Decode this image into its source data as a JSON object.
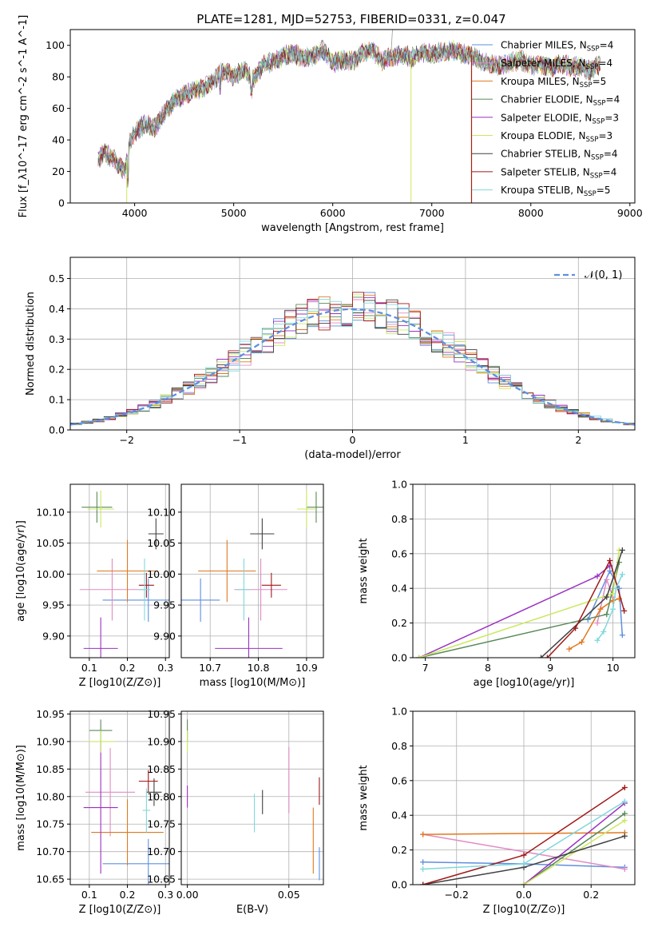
{
  "title": "PLATE=1281, MJD=52753, FIBERID=0331, z=0.047",
  "colors": {
    "chabrier_miles": "#5f8fe0",
    "salpeter_miles": "#e08cc4",
    "kroupa_miles": "#e07820",
    "chabrier_elodie": "#5a8a5a",
    "salpeter_elodie": "#9b30c0",
    "kroupa_elodie": "#cbe860",
    "chabrier_stelib": "#404040",
    "salpeter_stelib": "#a01818",
    "kroupa_stelib": "#80d8dc",
    "normal_curve": "#5f8fe0"
  },
  "chart_data": [
    {
      "type": "line",
      "title": "PLATE=1281, MJD=52753, FIBERID=0331, z=0.047",
      "xlabel": "wavelength [Angstrom, rest frame]",
      "ylabel": "Flux [f_λ10^-17 erg cm^-2 s^-1 A^-1]",
      "xlim": [
        3350,
        9050
      ],
      "ylim": [
        0,
        110
      ],
      "xticks": [
        "4000",
        "5000",
        "6000",
        "7000",
        "8000",
        "9000"
      ],
      "yticks": [
        "0",
        "20",
        "40",
        "60",
        "80",
        "100"
      ],
      "legend": "right",
      "legend_entries": [
        {
          "label": "Chabrier MILES, N_SSP=4",
          "color": "#5f8fe0"
        },
        {
          "label": "Salpeter MILES, N_SSP=4",
          "color": "#e08cc4"
        },
        {
          "label": "Kroupa MILES, N_SSP=5",
          "color": "#e07820"
        },
        {
          "label": "Chabrier ELODIE, N_SSP=4",
          "color": "#5a8a5a"
        },
        {
          "label": "Salpeter ELODIE, N_SSP=3",
          "color": "#9b30c0"
        },
        {
          "label": "Kroupa ELODIE, N_SSP=3",
          "color": "#cbe860"
        },
        {
          "label": "Chabrier STELIB, N_SSP=4",
          "color": "#404040"
        },
        {
          "label": "Salpeter STELIB, N_SSP=4",
          "color": "#a01818"
        },
        {
          "label": "Kroupa STELIB, N_SSP=5",
          "color": "#80d8dc"
        }
      ],
      "spectrum_envelope": {
        "x": [
          3630,
          3700,
          3800,
          3900,
          3950,
          4000,
          4100,
          4200,
          4300,
          4400,
          4500,
          4600,
          4700,
          4800,
          4900,
          5000,
          5100,
          5200,
          5300,
          5400,
          5500,
          5600,
          5700,
          5800,
          5900,
          6000,
          6100,
          6200,
          6300,
          6400,
          6500,
          6600,
          6700,
          6800,
          6900,
          7000,
          7100,
          7200,
          7300,
          7400,
          7500,
          7600,
          7700,
          7800,
          7900,
          8000,
          8100,
          8200,
          8300,
          8400,
          8500,
          8600,
          8700
        ],
        "y": [
          28,
          32,
          27,
          20,
          38,
          45,
          50,
          48,
          57,
          65,
          68,
          72,
          73,
          78,
          84,
          80,
          85,
          78,
          88,
          90,
          93,
          95,
          92,
          93,
          97,
          89,
          91,
          90,
          95,
          97,
          90,
          93,
          94,
          92,
          96,
          94,
          96,
          97,
          95,
          94,
          90,
          88,
          87,
          89,
          91,
          87,
          88,
          86,
          88,
          87,
          86,
          84,
          88
        ]
      }
    },
    {
      "type": "line",
      "xlabel": "(data-model)/error",
      "ylabel": "Normed distribution",
      "xlim": [
        -2.5,
        2.5
      ],
      "ylim": [
        0,
        0.57
      ],
      "xticks": [
        "−2",
        "−1",
        "0",
        "1",
        "2"
      ],
      "yticks": [
        "0.0",
        "0.1",
        "0.2",
        "0.3",
        "0.4",
        "0.5"
      ],
      "legend": "top-right",
      "legend_label": "𝒩(0, 1)",
      "series": [
        {
          "name": "N(0,1)",
          "type": "dashed",
          "mean": 0,
          "sigma": 1
        }
      ],
      "histogram_bin_width": 0.1
    },
    {
      "type": "scatter",
      "xlabel": "Z [log10(Z/Z⊙)]",
      "ylabel": "age [log10(age/yr)]",
      "xlim": [
        0.05,
        0.31
      ],
      "ylim": [
        9.865,
        10.145
      ],
      "xticks": [
        "0.1",
        "0.2",
        "0.3"
      ],
      "yticks": [
        "9.90",
        "9.95",
        "10.00",
        "10.05",
        "10.10"
      ],
      "points": [
        {
          "color": "#5f8fe0",
          "x": 0.255,
          "y": 9.958,
          "xerr": 0.12,
          "yerr": 0.035
        },
        {
          "color": "#e08cc4",
          "x": 0.16,
          "y": 9.975,
          "xerr": 0.085,
          "yerr": 0.05
        },
        {
          "color": "#e07820",
          "x": 0.2,
          "y": 10.005,
          "xerr": 0.08,
          "yerr": 0.05
        },
        {
          "color": "#5a8a5a",
          "x": 0.12,
          "y": 10.108,
          "xerr": 0.04,
          "yerr": 0.025
        },
        {
          "color": "#9b30c0",
          "x": 0.13,
          "y": 9.88,
          "xerr": 0.045,
          "yerr": 0.05
        },
        {
          "color": "#cbe860",
          "x": 0.13,
          "y": 10.105,
          "xerr": 0.035,
          "yerr": 0.03
        },
        {
          "color": "#404040",
          "x": 0.275,
          "y": 10.065,
          "xerr": 0.02,
          "yerr": 0.025
        },
        {
          "color": "#a01818",
          "x": 0.25,
          "y": 9.982,
          "xerr": 0.02,
          "yerr": 0.02
        },
        {
          "color": "#80d8dc",
          "x": 0.245,
          "y": 9.975,
          "xerr": 0.015,
          "yerr": 0.05
        }
      ]
    },
    {
      "type": "scatter",
      "xlabel": "mass [log10(M/M⊙)]",
      "xlim": [
        10.64,
        10.935
      ],
      "ylim": [
        9.865,
        10.145
      ],
      "xticks": [
        "10.7",
        "10.8",
        "10.9"
      ],
      "yticks": [
        "9.90",
        "9.95",
        "10.00",
        "10.05",
        "10.10"
      ],
      "points": [
        {
          "color": "#5f8fe0",
          "x": 10.68,
          "y": 9.958,
          "xerr": 0.04,
          "yerr": 0.035
        },
        {
          "color": "#e08cc4",
          "x": 10.805,
          "y": 9.975,
          "xerr": 0.055,
          "yerr": 0.05
        },
        {
          "color": "#e07820",
          "x": 10.735,
          "y": 10.005,
          "xerr": 0.06,
          "yerr": 0.05
        },
        {
          "color": "#5a8a5a",
          "x": 10.92,
          "y": 10.108,
          "xerr": 0.02,
          "yerr": 0.025
        },
        {
          "color": "#9b30c0",
          "x": 10.78,
          "y": 9.88,
          "xerr": 0.07,
          "yerr": 0.05
        },
        {
          "color": "#cbe860",
          "x": 10.9,
          "y": 10.105,
          "xerr": 0.02,
          "yerr": 0.03
        },
        {
          "color": "#404040",
          "x": 10.808,
          "y": 10.065,
          "xerr": 0.025,
          "yerr": 0.025
        },
        {
          "color": "#a01818",
          "x": 10.827,
          "y": 9.982,
          "xerr": 0.02,
          "yerr": 0.02
        },
        {
          "color": "#80d8dc",
          "x": 10.77,
          "y": 9.975,
          "xerr": 0.015,
          "yerr": 0.05
        }
      ]
    },
    {
      "type": "line",
      "xlabel": "age [log10(age/yr)]",
      "ylabel": "mass weight",
      "xlim": [
        6.8,
        10.35
      ],
      "ylim": [
        0,
        1
      ],
      "xticks": [
        "7",
        "8",
        "9",
        "10"
      ],
      "yticks": [
        "0.0",
        "0.2",
        "0.4",
        "0.6",
        "0.8",
        "1.0"
      ],
      "series": [
        {
          "name": "Chabrier MILES",
          "color": "#5f8fe0",
          "x": [
            9.6,
            9.95,
            10.1,
            10.15
          ],
          "y": [
            0.22,
            0.5,
            0.4,
            0.13
          ]
        },
        {
          "name": "Salpeter MILES",
          "color": "#e08cc4",
          "x": [
            9.75,
            9.9,
            10.0
          ],
          "y": [
            0.2,
            0.45,
            0.35
          ]
        },
        {
          "name": "Kroupa MILES",
          "color": "#e07820",
          "x": [
            9.3,
            9.5,
            9.8,
            10.0,
            10.1
          ],
          "y": [
            0.05,
            0.09,
            0.28,
            0.33,
            0.34
          ]
        },
        {
          "name": "Chabrier ELODIE",
          "color": "#5a8a5a",
          "x": [
            6.9,
            9.9,
            10.1
          ],
          "y": [
            0.0,
            0.25,
            0.55
          ]
        },
        {
          "name": "Salpeter ELODIE",
          "color": "#9b30c0",
          "x": [
            6.9,
            9.75,
            9.95
          ],
          "y": [
            0.0,
            0.47,
            0.53
          ]
        },
        {
          "name": "Kroupa ELODIE",
          "color": "#cbe860",
          "x": [
            6.9,
            10.0,
            10.1
          ],
          "y": [
            0.0,
            0.37,
            0.62
          ]
        },
        {
          "name": "Chabrier STELIB",
          "color": "#404040",
          "x": [
            8.85,
            9.9,
            10.15
          ],
          "y": [
            0.0,
            0.35,
            0.62
          ]
        },
        {
          "name": "Salpeter STELIB",
          "color": "#a01818",
          "x": [
            8.95,
            9.4,
            9.95,
            10.18
          ],
          "y": [
            0.0,
            0.17,
            0.56,
            0.27
          ]
        },
        {
          "name": "Kroupa STELIB",
          "color": "#80d8dc",
          "x": [
            9.75,
            9.85,
            10.0,
            10.05,
            10.15
          ],
          "y": [
            0.1,
            0.15,
            0.28,
            0.4,
            0.48
          ]
        }
      ]
    },
    {
      "type": "scatter",
      "xlabel": "Z [log10(Z/Z⊙)]",
      "ylabel": "mass [log10(M/M⊙)]",
      "xlim": [
        0.05,
        0.31
      ],
      "ylim": [
        10.64,
        10.955
      ],
      "xticks": [
        "0.1",
        "0.2",
        "0.3"
      ],
      "yticks": [
        "10.65",
        "10.70",
        "10.75",
        "10.80",
        "10.85",
        "10.90",
        "10.95"
      ],
      "points": [
        {
          "color": "#5f8fe0",
          "x": 0.255,
          "y": 10.678,
          "xerr": 0.12,
          "yerr": 0.045
        },
        {
          "color": "#e08cc4",
          "x": 0.155,
          "y": 10.808,
          "xerr": 0.065,
          "yerr": 0.08
        },
        {
          "color": "#e07820",
          "x": 0.2,
          "y": 10.735,
          "xerr": 0.095,
          "yerr": 0.06
        },
        {
          "color": "#5a8a5a",
          "x": 0.13,
          "y": 10.92,
          "xerr": 0.03,
          "yerr": 0.02
        },
        {
          "color": "#9b30c0",
          "x": 0.13,
          "y": 10.78,
          "xerr": 0.045,
          "yerr": 0.12
        },
        {
          "color": "#cbe860",
          "x": 0.13,
          "y": 10.9,
          "xerr": 0.035,
          "yerr": 0.02
        },
        {
          "color": "#404040",
          "x": 0.27,
          "y": 10.808,
          "xerr": 0.02,
          "yerr": 0.025
        },
        {
          "color": "#a01818",
          "x": 0.255,
          "y": 10.828,
          "xerr": 0.025,
          "yerr": 0.02
        },
        {
          "color": "#80d8dc",
          "x": 0.25,
          "y": 10.775,
          "xerr": 0.01,
          "yerr": 0.04
        }
      ]
    },
    {
      "type": "scatter",
      "xlabel": "E(B-V)",
      "xlim": [
        -0.003,
        0.067
      ],
      "ylim": [
        10.64,
        10.955
      ],
      "xticks": [
        "0.00",
        "0.05"
      ],
      "yticks": [
        "10.65",
        "10.70",
        "10.75",
        "10.80",
        "10.85",
        "10.90",
        "10.95"
      ],
      "points": [
        {
          "color": "#5f8fe0",
          "x": 0.065,
          "y": 10.678,
          "yerr": 0.03
        },
        {
          "color": "#e08cc4",
          "x": 0.05,
          "y": 10.83,
          "yerr": 0.06
        },
        {
          "color": "#e07820",
          "x": 0.062,
          "y": 10.72,
          "yerr": 0.06
        },
        {
          "color": "#5a8a5a",
          "x": 0.0,
          "y": 10.92,
          "yerr": 0.02
        },
        {
          "color": "#9b30c0",
          "x": 0.0,
          "y": 10.8,
          "yerr": 0.02
        },
        {
          "color": "#cbe860",
          "x": 0.0,
          "y": 10.9,
          "yerr": 0.02
        },
        {
          "color": "#404040",
          "x": 0.037,
          "y": 10.79,
          "yerr": 0.022
        },
        {
          "color": "#a01818",
          "x": 0.065,
          "y": 10.81,
          "yerr": 0.025
        },
        {
          "color": "#80d8dc",
          "x": 0.033,
          "y": 10.77,
          "yerr": 0.035
        }
      ]
    },
    {
      "type": "line",
      "xlabel": "Z [log10(Z/Z⊙)]",
      "ylabel": "mass weight",
      "xlim": [
        -0.33,
        0.33
      ],
      "ylim": [
        0,
        1
      ],
      "xticks": [
        "−0.2",
        "0.0",
        "0.2"
      ],
      "yticks": [
        "0.0",
        "0.2",
        "0.4",
        "0.6",
        "0.8",
        "1.0"
      ],
      "series": [
        {
          "name": "Chabrier MILES",
          "color": "#5f8fe0",
          "x": [
            -0.3,
            0.0,
            0.3
          ],
          "y": [
            0.13,
            0.12,
            0.1
          ]
        },
        {
          "name": "Salpeter MILES",
          "color": "#e08cc4",
          "x": [
            -0.3,
            0.3
          ],
          "y": [
            0.29,
            0.09
          ]
        },
        {
          "name": "Kroupa MILES",
          "color": "#e07820",
          "x": [
            -0.3,
            0.3
          ],
          "y": [
            0.29,
            0.3
          ]
        },
        {
          "name": "Chabrier ELODIE",
          "color": "#5a8a5a",
          "x": [
            0.0,
            0.3
          ],
          "y": [
            0.0,
            0.41
          ]
        },
        {
          "name": "Salpeter ELODIE",
          "color": "#9b30c0",
          "x": [
            0.0,
            0.3
          ],
          "y": [
            0.0,
            0.47
          ]
        },
        {
          "name": "Kroupa ELODIE",
          "color": "#cbe860",
          "x": [
            0.0,
            0.3
          ],
          "y": [
            0.0,
            0.37
          ]
        },
        {
          "name": "Chabrier STELIB",
          "color": "#404040",
          "x": [
            -0.3,
            0.0,
            0.3
          ],
          "y": [
            0.0,
            0.1,
            0.28
          ]
        },
        {
          "name": "Salpeter STELIB",
          "color": "#a01818",
          "x": [
            -0.3,
            0.0,
            0.3
          ],
          "y": [
            0.0,
            0.17,
            0.56
          ]
        },
        {
          "name": "Kroupa STELIB",
          "color": "#80d8dc",
          "x": [
            -0.3,
            0.0,
            0.3
          ],
          "y": [
            0.09,
            0.12,
            0.48
          ]
        }
      ]
    }
  ]
}
